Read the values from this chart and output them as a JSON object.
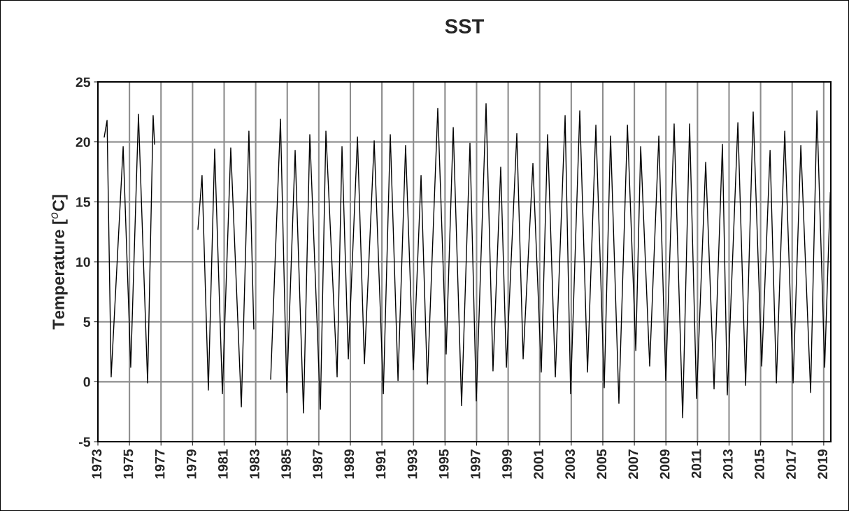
{
  "chart_data": {
    "type": "line",
    "title": "SST",
    "ylabel": "Temperature [$^{o}$C]",
    "xlim": [
      1973,
      2019.45
    ],
    "xticks": [
      1973,
      1975,
      1977,
      1979,
      1981,
      1983,
      1985,
      1987,
      1989,
      1991,
      1993,
      1995,
      1997,
      1999,
      2001,
      2003,
      2005,
      2007,
      2009,
      2011,
      2013,
      2015,
      2017,
      2019
    ],
    "ylim": [
      -5,
      25
    ],
    "yticks": [
      -5,
      0,
      5,
      10,
      15,
      20,
      25
    ],
    "grid": true,
    "legend": false,
    "marker": "none",
    "line_style": "solid",
    "series": [
      {
        "color": "#000000",
        "x": [
          1973.4,
          1973.58,
          1973.84,
          1974.6,
          1975.08,
          1975.57,
          1976.15,
          1976.5,
          1976.59,
          null,
          1979.34,
          1979.6,
          1980.0,
          1980.4,
          1980.89,
          1981.42,
          1982.09,
          1982.57,
          1982.88,
          null,
          1983.95,
          1984.57,
          1984.97,
          1985.5,
          1986.03,
          1986.43,
          1987.1,
          1987.45,
          1988.16,
          1988.47,
          1988.87,
          1989.45,
          1989.89,
          1990.51,
          1991.09,
          1991.53,
          1992.02,
          1992.5,
          1992.99,
          1993.48,
          1993.88,
          1994.54,
          1995.07,
          1995.52,
          1996.05,
          1996.58,
          1996.98,
          1997.6,
          1998.04,
          1998.53,
          1998.89,
          1999.55,
          1999.95,
          2000.57,
          2001.1,
          2001.5,
          2001.99,
          2002.61,
          2002.96,
          2003.54,
          2004.03,
          2004.56,
          2005.09,
          2005.49,
          2006.02,
          2006.56,
          2007.09,
          2007.4,
          2007.97,
          2008.55,
          2008.99,
          2009.52,
          2010.06,
          2010.5,
          2010.94,
          2011.52,
          2012.05,
          2012.58,
          2012.89,
          2013.56,
          2014.05,
          2014.53,
          2015.07,
          2015.6,
          2016.0,
          2016.53,
          2017.06,
          2017.55,
          2018.17,
          2018.57,
          2019.06,
          2019.42
        ],
        "values": [
          20.4,
          21.8,
          0.4,
          19.6,
          1.2,
          22.3,
          -0.1,
          22.2,
          19.8,
          null,
          12.7,
          17.2,
          -0.7,
          19.4,
          -1.0,
          19.5,
          -2.1,
          20.9,
          4.4,
          null,
          0.2,
          21.9,
          -0.9,
          19.3,
          -2.6,
          20.6,
          -2.3,
          20.9,
          0.4,
          19.6,
          1.9,
          20.4,
          1.5,
          20.1,
          -1.0,
          20.6,
          0.1,
          19.7,
          1.0,
          17.2,
          -0.2,
          22.8,
          2.3,
          21.2,
          -2.0,
          19.9,
          -1.6,
          23.2,
          0.9,
          17.9,
          1.2,
          20.7,
          1.9,
          18.2,
          0.8,
          20.6,
          0.4,
          22.2,
          -1.0,
          22.6,
          0.8,
          21.4,
          -0.5,
          20.5,
          -1.8,
          21.4,
          2.6,
          19.6,
          1.3,
          20.5,
          0.1,
          21.5,
          -3.0,
          21.5,
          -1.4,
          18.3,
          -0.6,
          19.8,
          -1.1,
          21.6,
          -0.3,
          22.5,
          1.3,
          19.3,
          -0.1,
          20.9,
          -0.1,
          19.7,
          -0.9,
          22.6,
          1.2,
          15.8
        ]
      }
    ]
  }
}
